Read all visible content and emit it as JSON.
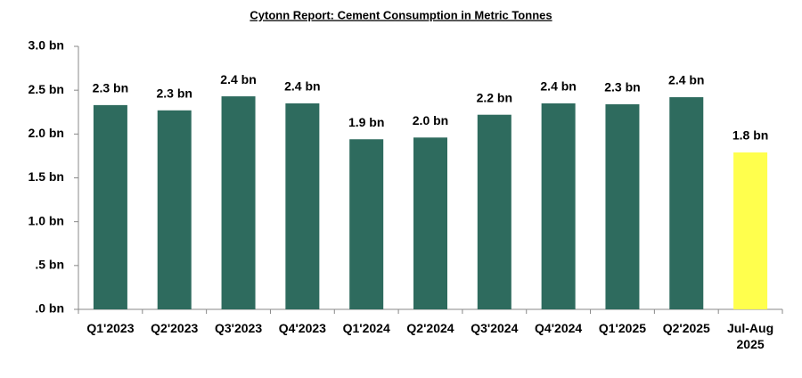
{
  "chart_data": {
    "type": "bar",
    "title": "Cytonn Report: Cement Consumption in Metric Tonnes",
    "categories": [
      "Q1'2023",
      "Q2'2023",
      "Q3'2023",
      "Q4'2023",
      "Q1'2024",
      "Q2'2024",
      "Q3'2024",
      "Q4'2024",
      "Q1'2025",
      "Q2'2025",
      "Jul-Aug 2025"
    ],
    "values": [
      2.33,
      2.27,
      2.43,
      2.35,
      1.94,
      1.96,
      2.22,
      2.35,
      2.34,
      2.42,
      1.79
    ],
    "value_labels": [
      "2.3 bn",
      "2.3 bn",
      "2.4 bn",
      "2.4 bn",
      "1.9 bn",
      "2.0 bn",
      "2.2 bn",
      "2.4 bn",
      "2.3 bn",
      "2.4 bn",
      "1.8 bn"
    ],
    "colors": [
      "#2e6b5e",
      "#2e6b5e",
      "#2e6b5e",
      "#2e6b5e",
      "#2e6b5e",
      "#2e6b5e",
      "#2e6b5e",
      "#2e6b5e",
      "#2e6b5e",
      "#2e6b5e",
      "#ffff4d"
    ],
    "ylim": [
      0,
      3
    ],
    "yticks": [
      {
        "value": 0,
        "label": ".0 bn"
      },
      {
        "value": 0.5,
        "label": ".5 bn"
      },
      {
        "value": 1,
        "label": "1.0 bn"
      },
      {
        "value": 1.5,
        "label": "1.5 bn"
      },
      {
        "value": 2,
        "label": "2.0 bn"
      },
      {
        "value": 2.5,
        "label": "2.5 bn"
      },
      {
        "value": 3,
        "label": "3.0 bn"
      }
    ],
    "grid": false
  }
}
